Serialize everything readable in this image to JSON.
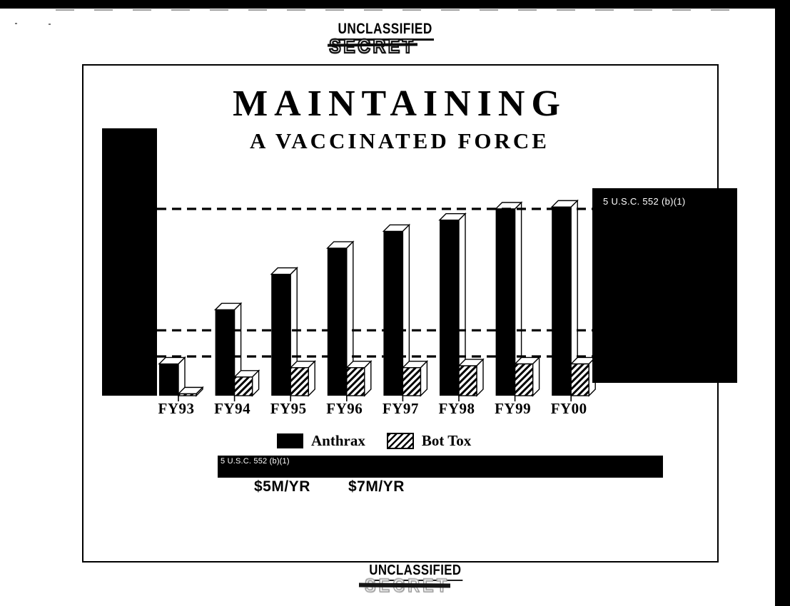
{
  "classifications": {
    "top_label": "UNCLASSIFIED",
    "top_stamp": "SECRET",
    "bottom_label": "UNCLASSIFIED",
    "bottom_stamp": "SECRET"
  },
  "title": {
    "line1": "MAINTAINING",
    "line2": "A VACCINATED FORCE"
  },
  "redactions": {
    "right_box_label": "5 U.S.C. 552 (b)(1)",
    "bottom_bar_label": "5 U.S.C. 552 (b)(1)"
  },
  "legend": {
    "items": [
      {
        "label": "Anthrax",
        "swatch": "solid-black"
      },
      {
        "label": "Bot Tox",
        "swatch": "diagonal-hatch"
      }
    ]
  },
  "cost_annotations": {
    "anthrax": "$5M/YR",
    "bot_tox": "$7M/YR"
  },
  "colors": {
    "ink": "#000000",
    "paper": "#ffffff",
    "redaction_fill": "#000000",
    "redaction_text": "#ffffff"
  },
  "chart_data": {
    "type": "bar",
    "categories": [
      "FY93",
      "FY94",
      "FY95",
      "FY96",
      "FY97",
      "FY98",
      "FY99",
      "FY00"
    ],
    "series": [
      {
        "name": "Anthrax",
        "pattern": "solid-black",
        "values": [
          17,
          46,
          65,
          79,
          88,
          94,
          100,
          101
        ]
      },
      {
        "name": "Bot Tox",
        "pattern": "diagonal-hatch",
        "values": [
          1,
          10,
          15,
          15,
          15,
          16,
          17,
          17
        ]
      }
    ],
    "title": "MAINTAINING A VACCINATED FORCE",
    "xlabel": "",
    "ylabel": "",
    "y_axis_note": "Y-axis scale hidden by redaction block; values are relative units with FY99 Anthrax = 100",
    "reference_lines": [
      100,
      35,
      21
    ],
    "reference_line_style": "dashed",
    "ylim": [
      0,
      143
    ],
    "grid": "three dashed horizontal reference lines only",
    "bar_style": "pseudo-3d",
    "legend_position": "below-chart"
  }
}
